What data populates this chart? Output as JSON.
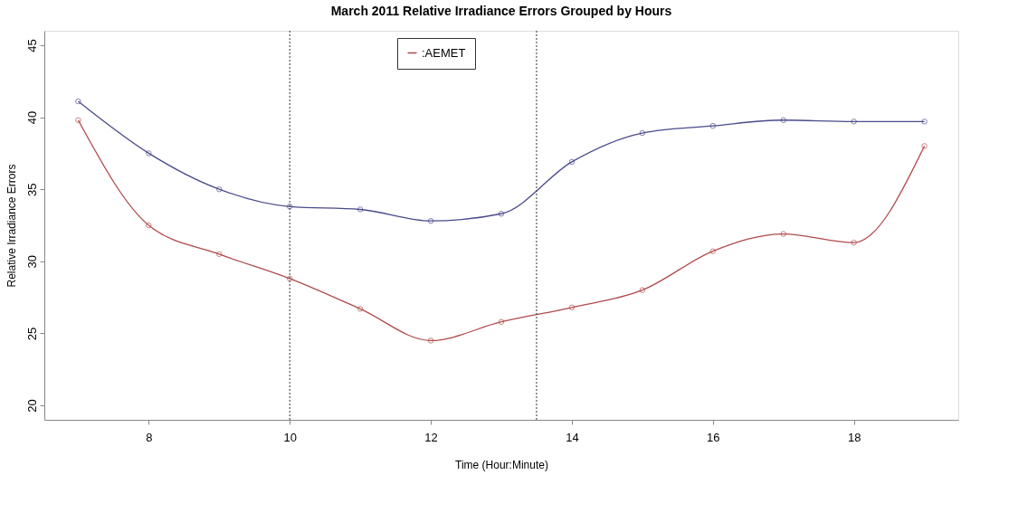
{
  "chart_data": {
    "type": "line",
    "title": "March 2011 Relative Irradiance Errors Grouped by Hours",
    "xlabel": "Time (Hour:Minute)",
    "ylabel": "Relative Irradiance Errors",
    "x": [
      7,
      8,
      9,
      10,
      11,
      12,
      13,
      14,
      15,
      16,
      17,
      18,
      19
    ],
    "series": [
      {
        "color": "#4a4a8c",
        "values": [
          41.1,
          37.5,
          35.0,
          33.8,
          33.6,
          32.8,
          33.3,
          36.9,
          38.9,
          39.4,
          39.8,
          39.7,
          39.7
        ]
      },
      {
        "name": ":AEMET",
        "color": "#b04a4a",
        "values": [
          39.8,
          32.5,
          30.5,
          28.8,
          26.7,
          24.5,
          25.8,
          26.8,
          28.0,
          30.7,
          31.9,
          31.3,
          38.0
        ]
      }
    ],
    "xlim": [
      6.52,
      19.48
    ],
    "xticks": [
      8,
      10,
      12,
      14,
      16,
      18
    ],
    "ylim": [
      19,
      46
    ],
    "yticks": [
      20,
      25,
      30,
      35,
      40,
      45
    ],
    "ref_lines": [
      {
        "axis": "x",
        "value": 10,
        "line_style": "dotted",
        "color": "#333333"
      },
      {
        "axis": "x",
        "value": 13.5,
        "line_style": "dotted",
        "color": "#333333"
      }
    ],
    "grid": false,
    "legend": "top",
    "marker": "circle",
    "line_style": "solid"
  }
}
